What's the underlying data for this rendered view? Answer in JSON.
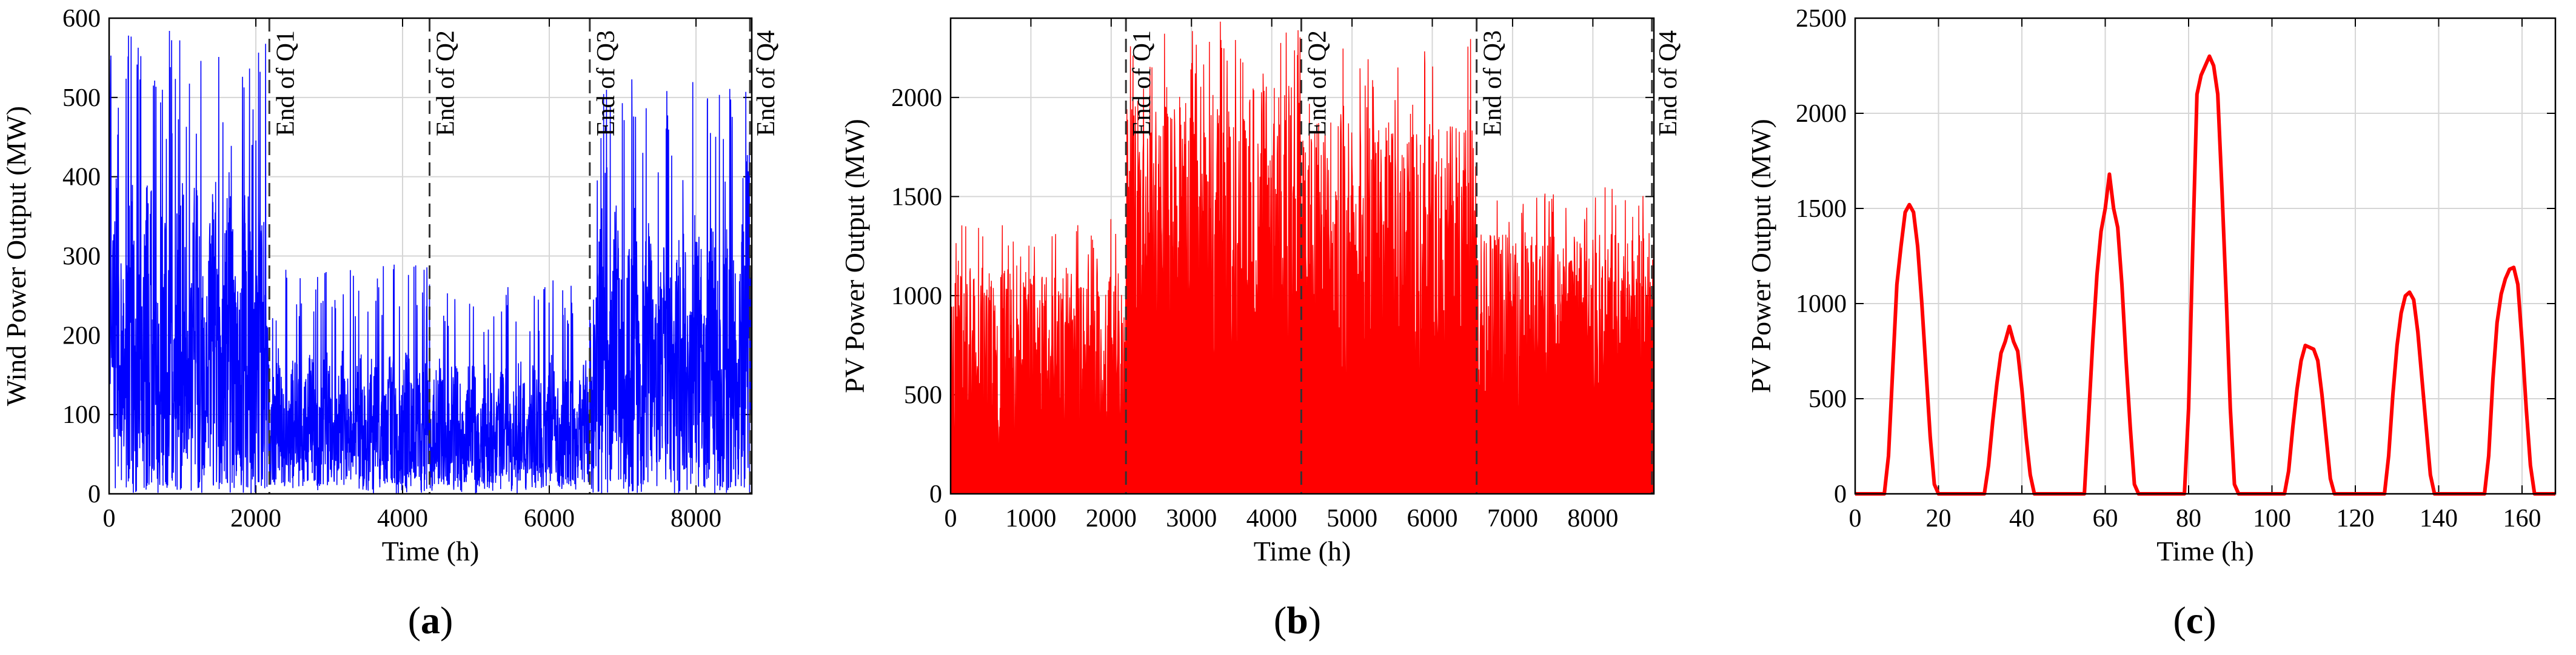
{
  "figure": {
    "captions": {
      "a": "a",
      "b": "b",
      "c": "c"
    }
  },
  "chart_data": [
    {
      "id": "a",
      "type": "line",
      "xlabel": "Time (h)",
      "ylabel": "Wind Power Output (MW)",
      "xlim": [
        0,
        8760
      ],
      "ylim": [
        0,
        600
      ],
      "xticks": [
        0,
        2000,
        4000,
        6000,
        8000
      ],
      "yticks": [
        0,
        100,
        200,
        300,
        400,
        500,
        600
      ],
      "grid": true,
      "series": [
        {
          "color": "#0000ff",
          "n_points": 8760,
          "segments": [
            {
              "x_start": 0,
              "x_end": 2184,
              "mean": 220,
              "max": 585,
              "min": 0
            },
            {
              "x_start": 2184,
              "x_end": 4368,
              "mean": 100,
              "max": 290,
              "min": 0
            },
            {
              "x_start": 4368,
              "x_end": 6552,
              "mean": 95,
              "max": 270,
              "min": 0
            },
            {
              "x_start": 6552,
              "x_end": 8760,
              "mean": 200,
              "max": 525,
              "min": 0
            }
          ]
        }
      ],
      "markers": [
        {
          "x": 2184,
          "label": "End of Q1"
        },
        {
          "x": 4368,
          "label": "End of Q2"
        },
        {
          "x": 6552,
          "label": "End of Q3"
        },
        {
          "x": 8736,
          "label": "End of Q4"
        }
      ]
    },
    {
      "id": "b",
      "type": "area",
      "xlabel": "Time (h)",
      "ylabel": "PV Power Output (MW)",
      "xlim": [
        0,
        8760
      ],
      "ylim": [
        0,
        2400
      ],
      "xticks": [
        0,
        1000,
        2000,
        3000,
        4000,
        5000,
        6000,
        7000,
        8000
      ],
      "yticks": [
        0,
        500,
        1000,
        1500,
        2000
      ],
      "grid": true,
      "series": [
        {
          "color": "#ff0000",
          "n_points": 8760,
          "segments": [
            {
              "x_start": 0,
              "x_end": 2184,
              "mean_daily_peak": 900,
              "max": 1400
            },
            {
              "x_start": 2184,
              "x_end": 4368,
              "mean_daily_peak": 1650,
              "max": 2390
            },
            {
              "x_start": 4368,
              "x_end": 6552,
              "mean_daily_peak": 1500,
              "max": 2300
            },
            {
              "x_start": 6552,
              "x_end": 8760,
              "mean_daily_peak": 1050,
              "max": 1560
            }
          ]
        }
      ],
      "markers": [
        {
          "x": 2184,
          "label": "End of Q1"
        },
        {
          "x": 4368,
          "label": "End of Q2"
        },
        {
          "x": 6552,
          "label": "End of Q3"
        },
        {
          "x": 8736,
          "label": "End of Q4"
        }
      ]
    },
    {
      "id": "c",
      "type": "line",
      "xlabel": "Time (h)",
      "ylabel": "PV Power Output (MW)",
      "xlim": [
        0,
        168
      ],
      "ylim": [
        0,
        2500
      ],
      "xticks": [
        0,
        20,
        40,
        60,
        80,
        100,
        120,
        140,
        160
      ],
      "yticks": [
        0,
        500,
        1000,
        1500,
        2000,
        2500
      ],
      "grid": true,
      "series": [
        {
          "color": "#ff0000",
          "x": [
            0,
            7,
            8,
            9,
            10,
            11,
            12,
            13,
            14,
            15,
            16,
            17,
            18,
            19,
            20,
            31,
            32,
            33,
            34,
            35,
            36,
            37,
            38,
            39,
            40,
            41,
            42,
            43,
            44,
            55,
            56,
            57,
            58,
            59,
            60,
            61,
            62,
            63,
            64,
            65,
            66,
            67,
            68,
            79,
            80,
            81,
            82,
            83,
            84,
            85,
            86,
            87,
            88,
            89,
            90,
            91,
            92,
            103,
            104,
            105,
            106,
            107,
            108,
            109,
            110,
            111,
            112,
            113,
            114,
            115,
            116,
            127,
            128,
            129,
            130,
            131,
            132,
            133,
            134,
            135,
            136,
            137,
            138,
            139,
            140,
            151,
            152,
            153,
            154,
            155,
            156,
            157,
            158,
            159,
            160,
            161,
            162,
            163,
            164,
            168
          ],
          "y": [
            0,
            0,
            200,
            650,
            1100,
            1300,
            1480,
            1520,
            1480,
            1300,
            1000,
            650,
            300,
            50,
            0,
            0,
            150,
            380,
            580,
            740,
            800,
            880,
            800,
            750,
            550,
            300,
            100,
            0,
            0,
            0,
            400,
            800,
            1150,
            1380,
            1500,
            1680,
            1500,
            1400,
            1100,
            700,
            350,
            50,
            0,
            0,
            450,
            1300,
            2100,
            2200,
            2250,
            2300,
            2250,
            2100,
            1600,
            1050,
            450,
            50,
            0,
            0,
            120,
            350,
            550,
            700,
            780,
            770,
            760,
            700,
            520,
            300,
            80,
            0,
            0,
            0,
            200,
            520,
            780,
            950,
            1040,
            1060,
            1020,
            850,
            600,
            350,
            100,
            0,
            0,
            0,
            200,
            600,
            900,
            1050,
            1130,
            1180,
            1190,
            1100,
            800,
            450,
            150,
            0,
            0,
            0
          ]
        }
      ]
    }
  ]
}
